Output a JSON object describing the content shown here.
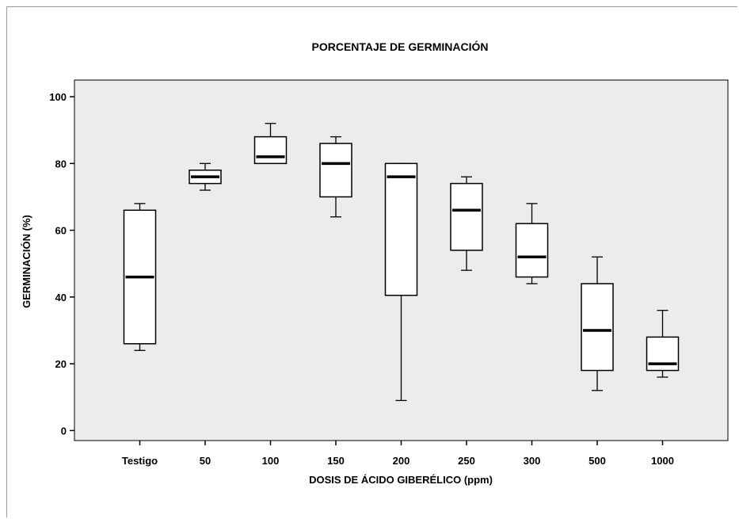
{
  "chart_data": {
    "type": "boxplot",
    "title": "PORCENTAJE DE GERMINACIÓN",
    "xlabel": "DOSIS DE ÁCIDO GIBERÉLICO (ppm)",
    "ylabel": "GERMINACIÓN (%)",
    "ylim": [
      -3,
      105
    ],
    "yticks": [
      0,
      20,
      40,
      60,
      80,
      100
    ],
    "grid": false,
    "plot_background": "#ececec",
    "categories": [
      "Testigo",
      "50",
      "100",
      "150",
      "200",
      "250",
      "300",
      "500",
      "1000"
    ],
    "boxes": [
      {
        "category": "Testigo",
        "min": 24,
        "q1": 26,
        "median": 46,
        "q3": 66,
        "max": 68
      },
      {
        "category": "50",
        "min": 72,
        "q1": 74,
        "median": 76,
        "q3": 78,
        "max": 80
      },
      {
        "category": "100",
        "min": 80,
        "q1": 80,
        "median": 82,
        "q3": 88,
        "max": 92
      },
      {
        "category": "150",
        "min": 64,
        "q1": 70,
        "median": 80,
        "q3": 86,
        "max": 88
      },
      {
        "category": "200",
        "min": 9,
        "q1": 40.5,
        "median": 76,
        "q3": 80,
        "max": 80
      },
      {
        "category": "250",
        "min": 48,
        "q1": 54,
        "median": 66,
        "q3": 74,
        "max": 76
      },
      {
        "category": "300",
        "min": 44,
        "q1": 46,
        "median": 52,
        "q3": 62,
        "max": 68
      },
      {
        "category": "500",
        "min": 12,
        "q1": 18,
        "median": 30,
        "q3": 44,
        "max": 52
      },
      {
        "category": "1000",
        "min": 16,
        "q1": 18,
        "median": 20,
        "q3": 28,
        "max": 36
      }
    ]
  }
}
